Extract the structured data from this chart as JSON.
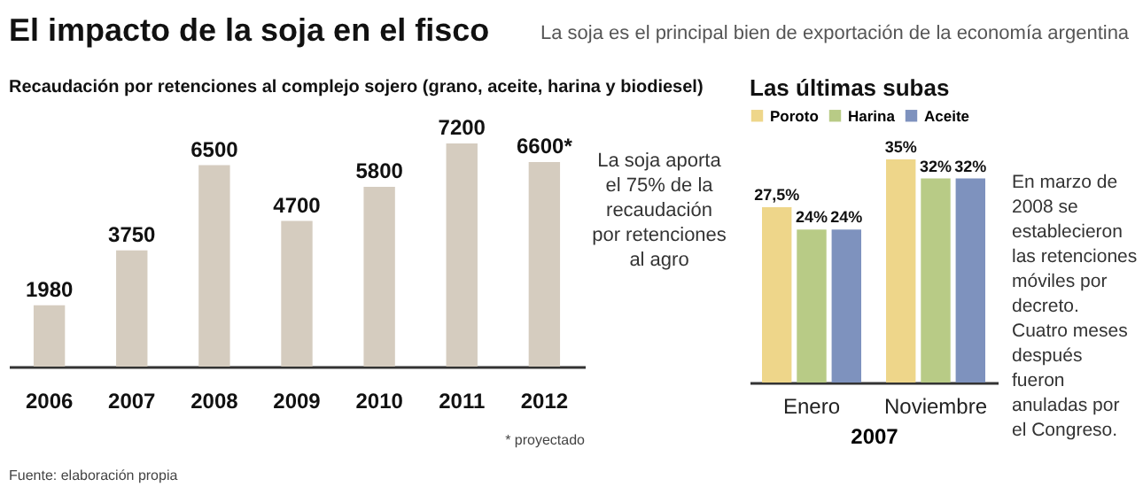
{
  "chart_data": [
    {
      "type": "other",
      "title": "El impacto de la soja en el fisco",
      "subtitle": "La soja es el principal bien de exportación de la economía argentina"
    },
    {
      "type": "bar",
      "title": "Recaudación por retenciones al complejo sojero (grano, aceite, harina y biodiesel)",
      "categories": [
        "2006",
        "2007",
        "2008",
        "2009",
        "2010",
        "2011",
        "2012"
      ],
      "values": [
        1980,
        3750,
        6500,
        4700,
        5800,
        7200,
        6600
      ],
      "value_labels": [
        "1980",
        "3750",
        "6500",
        "4700",
        "5800",
        "7200",
        "6600*"
      ],
      "color": "#d5ccbf",
      "annotations": [
        "La soja aporta\nel 75% de la\nrecaudación\npor retenciones\nal agro",
        "Fuente: elaboración propia",
        "* proyectado"
      ]
    },
    {
      "type": "bar",
      "title": "Las últimas subas",
      "categories": [
        "Enero",
        "Noviembre"
      ],
      "xlabel": "2007",
      "legend": "top left",
      "series": [
        {
          "name": "Poroto",
          "color": "#eed68a",
          "values": [
            27.5,
            35
          ],
          "value_labels": [
            "27,5%",
            "35%"
          ]
        },
        {
          "name": "Harina",
          "color": "#b8cb86",
          "values": [
            24,
            32
          ],
          "value_labels": [
            "24%",
            "32%"
          ]
        },
        {
          "name": "Aceite",
          "color": "#7e92be",
          "values": [
            24,
            32
          ],
          "value_labels": [
            "24%",
            "32%"
          ]
        }
      ],
      "annotations": [
        "En marzo de\n2008 se\nestablecieron\nlas retenciones\nmóviles por\ndecreto.\nCuatro meses\ndespués\nfueron\nanuladas por\nel Congreso."
      ]
    }
  ]
}
